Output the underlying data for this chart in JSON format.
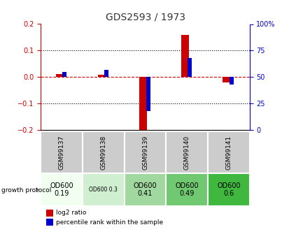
{
  "title": "GDS2593 / 1973",
  "samples": [
    "GSM99137",
    "GSM99138",
    "GSM99139",
    "GSM99140",
    "GSM99141"
  ],
  "log2_ratio": [
    0.012,
    0.01,
    -0.198,
    0.16,
    -0.02
  ],
  "percentile_rank": [
    55,
    57,
    18,
    68,
    43
  ],
  "ylim_left": [
    -0.2,
    0.2
  ],
  "ylim_right": [
    0,
    100
  ],
  "yticks_left": [
    -0.2,
    -0.1,
    0.0,
    0.1,
    0.2
  ],
  "yticks_right": [
    0,
    25,
    50,
    75,
    100
  ],
  "growth_protocol_labels": [
    "OD600\n0.19",
    "OD600 0.3",
    "OD600\n0.41",
    "OD600\n0.49",
    "OD600\n0.6"
  ],
  "growth_protocol_colors": [
    "#f0fff0",
    "#d0efd0",
    "#a0d8a0",
    "#70c870",
    "#40b840"
  ],
  "sample_header_bg": "#cccccc",
  "red_color": "#cc0000",
  "blue_color": "#0000cc",
  "dashed_line_color": "#cc0000",
  "dotted_line_color": "#000000",
  "title_color": "#333333",
  "left_axis_color": "#cc0000",
  "right_axis_color": "#0000cc"
}
